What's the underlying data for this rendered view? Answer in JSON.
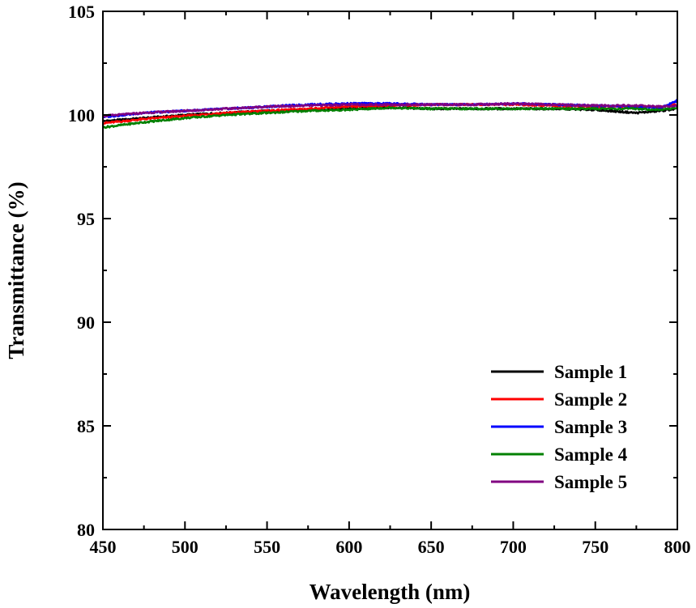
{
  "chart_data": {
    "type": "line",
    "title": "",
    "xlabel": "Wavelength (nm)",
    "ylabel": "Transmittance (%)",
    "xlim": [
      450,
      800
    ],
    "ylim": [
      80,
      105
    ],
    "xticks": [
      450,
      500,
      550,
      600,
      650,
      700,
      750,
      800
    ],
    "yticks": [
      80,
      85,
      90,
      95,
      100,
      105
    ],
    "xtick_labels": [
      "450",
      "500",
      "550",
      "600",
      "650",
      "700",
      "750",
      "800"
    ],
    "ytick_labels": [
      "80",
      "85",
      "90",
      "95",
      "100",
      "105"
    ],
    "grid": false,
    "legend_position": "bottom-right",
    "x": [
      450,
      475,
      500,
      525,
      550,
      575,
      600,
      625,
      650,
      675,
      700,
      725,
      750,
      775,
      790,
      800
    ],
    "series": [
      {
        "name": "Sample 1",
        "color": "#000000",
        "values": [
          99.7,
          99.85,
          100.0,
          100.1,
          100.2,
          100.25,
          100.3,
          100.35,
          100.3,
          100.3,
          100.3,
          100.3,
          100.25,
          100.1,
          100.2,
          100.3
        ]
      },
      {
        "name": "Sample 2",
        "color": "#ff0000",
        "values": [
          99.6,
          99.8,
          99.95,
          100.1,
          100.2,
          100.3,
          100.4,
          100.45,
          100.5,
          100.5,
          100.5,
          100.45,
          100.4,
          100.4,
          100.4,
          100.5
        ]
      },
      {
        "name": "Sample 3",
        "color": "#0000ff",
        "values": [
          99.9,
          100.1,
          100.2,
          100.3,
          100.4,
          100.5,
          100.55,
          100.55,
          100.5,
          100.5,
          100.55,
          100.5,
          100.45,
          100.4,
          100.35,
          100.7
        ]
      },
      {
        "name": "Sample 4",
        "color": "#008000",
        "values": [
          99.4,
          99.65,
          99.85,
          100.0,
          100.1,
          100.2,
          100.25,
          100.35,
          100.3,
          100.3,
          100.3,
          100.3,
          100.3,
          100.3,
          100.25,
          100.35
        ]
      },
      {
        "name": "Sample 5",
        "color": "#800080",
        "values": [
          99.95,
          100.1,
          100.2,
          100.3,
          100.4,
          100.45,
          100.5,
          100.5,
          100.5,
          100.5,
          100.55,
          100.5,
          100.45,
          100.45,
          100.4,
          100.45
        ]
      }
    ]
  }
}
